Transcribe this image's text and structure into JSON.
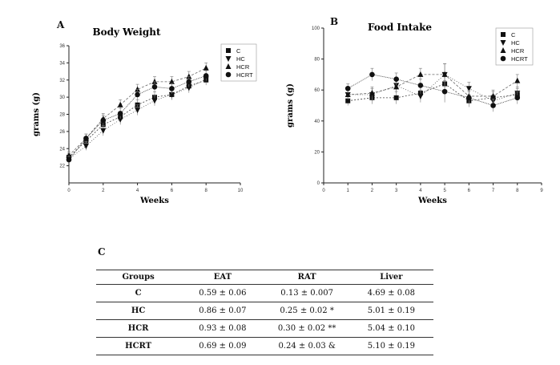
{
  "panels": {
    "a": "A",
    "b": "B",
    "c": "C"
  },
  "chart_data": [
    {
      "type": "line",
      "title": "Body Weight",
      "xlabel": "Weeks",
      "ylabel": "grams (g)",
      "xlim": [
        0,
        10
      ],
      "ylim": [
        20,
        36
      ],
      "xticks": [
        "0",
        "2",
        "4",
        "6",
        "8",
        "10"
      ],
      "yticks": [
        "22",
        "24",
        "26",
        "28",
        "30",
        "32",
        "34",
        "36"
      ],
      "x": [
        0,
        1,
        2,
        3,
        4,
        5,
        6,
        7,
        8
      ],
      "legend_position": "top-right",
      "series": [
        {
          "name": "C",
          "marker": "square",
          "values": [
            23.0,
            24.9,
            26.8,
            27.7,
            29.1,
            30.0,
            30.3,
            31.3,
            32.0
          ]
        },
        {
          "name": "HC",
          "marker": "triangle-down",
          "values": [
            22.8,
            24.3,
            26.1,
            27.4,
            28.5,
            29.6,
            30.3,
            31.1,
            32.1
          ]
        },
        {
          "name": "HCR",
          "marker": "triangle-up",
          "values": [
            23.2,
            25.2,
            27.5,
            29.1,
            30.9,
            31.8,
            31.8,
            32.4,
            33.4
          ]
        },
        {
          "name": "HCRT",
          "marker": "circle",
          "values": [
            22.7,
            25.2,
            27.3,
            28.1,
            30.3,
            31.2,
            31.0,
            31.8,
            32.5
          ]
        }
      ],
      "errors": [
        0.4,
        0.5,
        0.6,
        0.6,
        0.6,
        0.6,
        0.6,
        0.6,
        0.6
      ]
    },
    {
      "type": "line",
      "title": "Food Intake",
      "xlabel": "Weeks",
      "ylabel": "grams (g)",
      "xlim": [
        0,
        9
      ],
      "ylim": [
        0,
        100
      ],
      "xticks": [
        "0",
        "1",
        "2",
        "3",
        "4",
        "5",
        "6",
        "7",
        "8",
        "9"
      ],
      "yticks": [
        "0",
        "20",
        "40",
        "60",
        "80",
        "100"
      ],
      "x": [
        1,
        2,
        3,
        4,
        5,
        6,
        7,
        8
      ],
      "legend_position": "top-right",
      "series": [
        {
          "name": "C",
          "marker": "square",
          "values": [
            53,
            55,
            55,
            58,
            64,
            53,
            55,
            57
          ]
        },
        {
          "name": "HC",
          "marker": "triangle-down",
          "values": [
            57,
            57,
            63,
            56,
            70,
            61,
            53,
            58
          ]
        },
        {
          "name": "HCR",
          "marker": "triangle-up",
          "values": [
            57,
            58,
            62,
            70,
            70,
            56,
            56,
            66
          ]
        },
        {
          "name": "HCRT",
          "marker": "circle",
          "values": [
            61,
            70,
            67,
            63,
            59,
            55,
            50,
            55
          ]
        }
      ],
      "errors": [
        3,
        4,
        4,
        4,
        7,
        4,
        4,
        4
      ]
    }
  ],
  "table": {
    "headers": [
      "Groups",
      "EAT",
      "RAT",
      "Liver"
    ],
    "rows": [
      [
        "C",
        "0.59 ± 0.06",
        "0.13 ± 0.007",
        "4.69 ± 0.08"
      ],
      [
        "HC",
        "0.86 ± 0.07",
        "0.25 ± 0.02 *",
        "5.01  ± 0.19"
      ],
      [
        "HCR",
        "0.93 ± 0.08",
        "0.30 ± 0.02 **",
        "5.04 ± 0.10"
      ],
      [
        "HCRT",
        "0.69 ± 0.09",
        "0.24 ± 0.03 &",
        "5.10  ± 0.19"
      ]
    ]
  }
}
